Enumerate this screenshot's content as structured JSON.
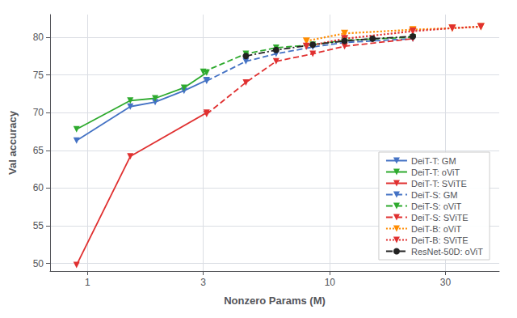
{
  "chart_data": {
    "type": "line",
    "xlabel": "Nonzero Params (M)",
    "ylabel": "Val accuracy",
    "log": "x",
    "xlim": [
      0.7,
      50
    ],
    "ylim": [
      49,
      83
    ],
    "xticks": [
      1,
      3,
      10,
      30
    ],
    "yticks": [
      50,
      55,
      60,
      65,
      70,
      75,
      80
    ],
    "grid": true,
    "legend": "lower right",
    "series": [
      {
        "name": "DeiT-T: GM",
        "color": "#4472C4",
        "line_style": "solid",
        "marker": "triangle_down",
        "x": [
          0.9,
          1.5,
          1.9,
          2.5,
          3.1
        ],
        "values": [
          66.3,
          70.8,
          71.4,
          72.9,
          74.3
        ]
      },
      {
        "name": "DeiT-T: oViT",
        "color": "#2EAA2E",
        "line_style": "solid",
        "marker": "triangle_down",
        "x": [
          0.9,
          1.5,
          1.9,
          2.5,
          3.1
        ],
        "values": [
          67.8,
          71.6,
          71.9,
          73.3,
          75.3
        ]
      },
      {
        "name": "DeiT-T: SViTE",
        "color": "#E03030",
        "line_style": "solid",
        "marker": "triangle_down",
        "x": [
          0.9,
          1.5,
          3.1
        ],
        "values": [
          49.8,
          64.2,
          70.0
        ]
      },
      {
        "name": "DeiT-S: GM",
        "color": "#4472C4",
        "line_style": "dashed",
        "marker": "triangle_down",
        "x": [
          3.1,
          4.5,
          6.0,
          8.5,
          11.5,
          22.0
        ],
        "values": [
          74.2,
          76.8,
          77.8,
          78.7,
          79.3,
          79.8
        ]
      },
      {
        "name": "DeiT-S: oViT",
        "color": "#2EAA2E",
        "line_style": "dashed",
        "marker": "triangle_down",
        "x": [
          3.0,
          4.5,
          6.0,
          8.5,
          11.5,
          22.0
        ],
        "values": [
          75.4,
          77.8,
          78.6,
          79.0,
          79.6,
          80.0
        ]
      },
      {
        "name": "DeiT-S: SViTE",
        "color": "#E03030",
        "line_style": "dashed",
        "marker": "triangle_down",
        "x": [
          3.1,
          4.5,
          6.0,
          8.5,
          11.5,
          22.0
        ],
        "values": [
          69.8,
          74.0,
          76.8,
          77.8,
          78.8,
          79.8
        ]
      },
      {
        "name": "DeiT-B: oViT",
        "color": "#FF8C00",
        "line_style": "dotted",
        "marker": "triangle_down",
        "x": [
          8.0,
          11.5,
          22.0,
          32.0,
          42.0
        ],
        "values": [
          79.5,
          80.5,
          81.0,
          81.2,
          81.4
        ]
      },
      {
        "name": "DeiT-B: SViTE",
        "color": "#E03030",
        "line_style": "dotted",
        "marker": "triangle_down",
        "x": [
          8.0,
          11.5,
          22.0,
          32.0,
          42.0
        ],
        "values": [
          78.8,
          79.8,
          80.8,
          81.2,
          81.4
        ]
      },
      {
        "name": "ResNet-50D: oViT",
        "color": "#222222",
        "line_style": "dashdot",
        "marker": "circle",
        "x": [
          4.5,
          6.0,
          8.5,
          11.5,
          15.0,
          22.0
        ],
        "values": [
          77.5,
          78.3,
          79.0,
          79.5,
          79.8,
          80.1
        ]
      }
    ]
  }
}
